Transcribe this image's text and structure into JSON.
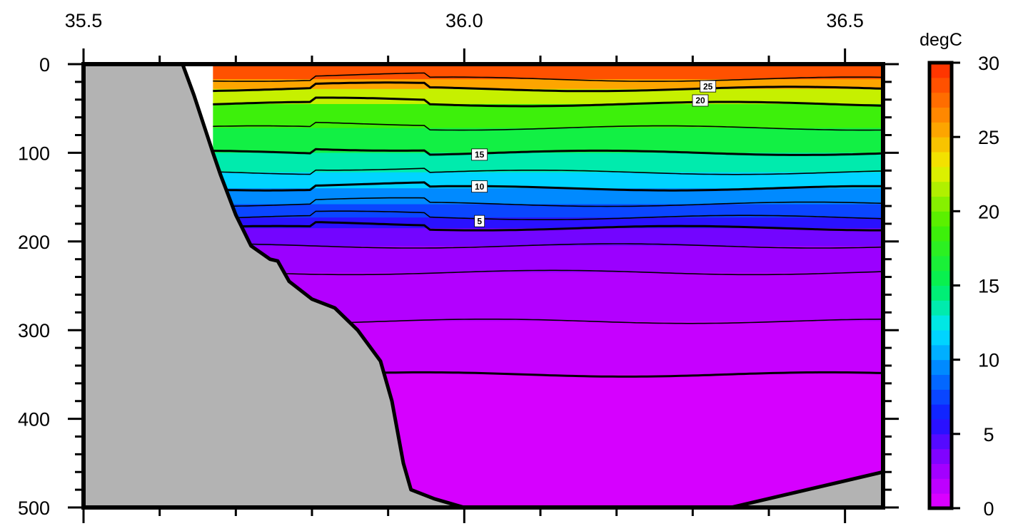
{
  "chart_data": {
    "type": "heatmap",
    "title": "",
    "xlabel": "",
    "ylabel": "",
    "xlim": [
      35.5,
      36.55
    ],
    "ylim": [
      500,
      0
    ],
    "x_ticks": [
      35.5,
      36.0,
      36.5
    ],
    "x_tick_labels": [
      "35.5",
      "36.0",
      "36.5"
    ],
    "x_minor_step": 0.1,
    "y_ticks": [
      0,
      100,
      200,
      300,
      400,
      500
    ],
    "y_tick_labels": [
      "0",
      "100",
      "200",
      "300",
      "400",
      "500"
    ],
    "y_minor_step": 20,
    "colorbar": {
      "label": "degC",
      "range": [
        0,
        30
      ],
      "ticks": [
        0,
        5,
        10,
        15,
        20,
        25,
        30
      ],
      "tick_labels": [
        "0",
        "5",
        "10",
        "15",
        "20",
        "25",
        "30"
      ]
    },
    "contour_labels": [
      {
        "text": "25",
        "x": 36.32,
        "y": 25
      },
      {
        "text": "20",
        "x": 36.31,
        "y": 41
      },
      {
        "text": "15",
        "x": 36.02,
        "y": 102
      },
      {
        "text": "10",
        "x": 36.02,
        "y": 138
      },
      {
        "text": "5",
        "x": 36.02,
        "y": 177
      }
    ],
    "temperature_layers": [
      {
        "temp": 28.5,
        "top": 0,
        "bottom": 17
      },
      {
        "temp": 25.5,
        "top": 17,
        "bottom": 28
      },
      {
        "temp": 22.0,
        "top": 28,
        "bottom": 45
      },
      {
        "temp": 18.5,
        "top": 45,
        "bottom": 72
      },
      {
        "temp": 16.0,
        "top": 72,
        "bottom": 100
      },
      {
        "temp": 13.5,
        "top": 100,
        "bottom": 122
      },
      {
        "temp": 11.5,
        "top": 122,
        "bottom": 140
      },
      {
        "temp": 9.5,
        "top": 140,
        "bottom": 158
      },
      {
        "temp": 7.5,
        "top": 158,
        "bottom": 173
      },
      {
        "temp": 5.5,
        "top": 173,
        "bottom": 185
      },
      {
        "temp": 3.8,
        "top": 185,
        "bottom": 205
      },
      {
        "temp": 2.8,
        "top": 205,
        "bottom": 235
      },
      {
        "temp": 1.9,
        "top": 235,
        "bottom": 290
      },
      {
        "temp": 1.2,
        "top": 290,
        "bottom": 350
      },
      {
        "temp": 0.6,
        "top": 350,
        "bottom": 500
      }
    ],
    "data_extent_x": [
      35.67,
      36.55
    ],
    "bathymetry_left": [
      [
        35.5,
        0
      ],
      [
        35.63,
        0
      ],
      [
        35.645,
        35
      ],
      [
        35.67,
        100
      ],
      [
        35.68,
        125
      ],
      [
        35.7,
        170
      ],
      [
        35.72,
        205
      ],
      [
        35.745,
        220
      ],
      [
        35.755,
        222
      ],
      [
        35.77,
        245
      ],
      [
        35.8,
        265
      ],
      [
        35.83,
        275
      ],
      [
        35.86,
        300
      ],
      [
        35.89,
        335
      ],
      [
        35.905,
        380
      ],
      [
        35.92,
        450
      ],
      [
        35.93,
        480
      ],
      [
        35.96,
        490
      ],
      [
        36.0,
        500
      ],
      [
        35.5,
        500
      ]
    ],
    "bathymetry_right": [
      [
        36.35,
        500
      ],
      [
        36.55,
        460
      ],
      [
        36.55,
        500
      ]
    ]
  }
}
